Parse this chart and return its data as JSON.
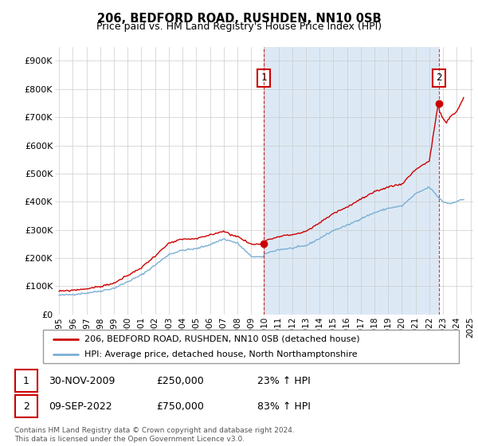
{
  "title": "206, BEDFORD ROAD, RUSHDEN, NN10 0SB",
  "subtitle": "Price paid vs. HM Land Registry's House Price Index (HPI)",
  "ylabel_ticks": [
    "£0",
    "£100K",
    "£200K",
    "£300K",
    "£400K",
    "£500K",
    "£600K",
    "£700K",
    "£800K",
    "£900K"
  ],
  "ytick_values": [
    0,
    100000,
    200000,
    300000,
    400000,
    500000,
    600000,
    700000,
    800000,
    900000
  ],
  "ylim": [
    0,
    950000
  ],
  "sale_color": "#cc0000",
  "hpi_color": "#7aafd4",
  "fill_color": "#dce9f5",
  "legend_sale": "206, BEDFORD ROAD, RUSHDEN, NN10 0SB (detached house)",
  "legend_hpi": "HPI: Average price, detached house, North Northamptonshire",
  "annotation1_date": "30-NOV-2009",
  "annotation1_price": "£250,000",
  "annotation1_pct": "23% ↑ HPI",
  "annotation2_date": "09-SEP-2022",
  "annotation2_price": "£750,000",
  "annotation2_pct": "83% ↑ HPI",
  "footer": "Contains HM Land Registry data © Crown copyright and database right 2024.\nThis data is licensed under the Open Government Licence v3.0.",
  "vline1_x": 2009.917,
  "vline2_x": 2022.69,
  "sale1_price": 250000,
  "sale2_price": 750000,
  "xlim_left": 1994.7,
  "xlim_right": 2025.2
}
